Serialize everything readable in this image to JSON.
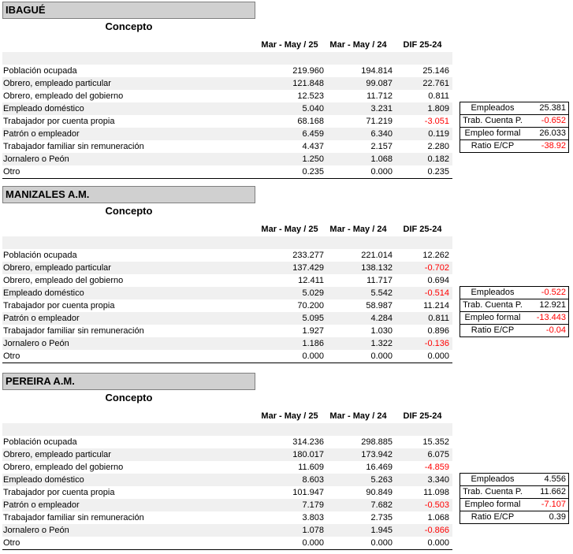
{
  "columns": [
    "Mar - May / 25",
    "Mar - May / 24",
    "DIF 25-24"
  ],
  "concepto_label": "Concepto",
  "sections": [
    {
      "title": "IBAGUÉ",
      "rows": [
        {
          "label": "Población ocupada",
          "v1": "219.960",
          "v2": "194.814",
          "v3": "25.146"
        },
        {
          "label": "Obrero, empleado particular",
          "v1": "121.848",
          "v2": "99.087",
          "v3": "22.761"
        },
        {
          "label": "Obrero, empleado del gobierno",
          "v1": "12.523",
          "v2": "11.712",
          "v3": "0.811"
        },
        {
          "label": "Empleado doméstico",
          "v1": "5.040",
          "v2": "3.231",
          "v3": "1.809"
        },
        {
          "label": "Trabajador por cuenta propia",
          "v1": "68.168",
          "v2": "71.219",
          "v3": "-3.051"
        },
        {
          "label": "Patrón o empleador",
          "v1": "6.459",
          "v2": "6.340",
          "v3": "0.119"
        },
        {
          "label": "Trabajador familiar sin remuneración",
          "v1": "4.437",
          "v2": "2.157",
          "v3": "2.280"
        },
        {
          "label": "Jornalero o Peón",
          "v1": "1.250",
          "v2": "1.068",
          "v3": "0.182"
        },
        {
          "label": "Otro",
          "v1": "0.235",
          "v2": "0.000",
          "v3": "0.235"
        }
      ],
      "summary": [
        {
          "k": "Empleados",
          "v": "25.381"
        },
        {
          "k": "Trab. Cuenta P.",
          "v": "-0.652"
        },
        {
          "k": "Empleo formal",
          "v": "26.033"
        },
        {
          "k": "Ratio E/CP",
          "v": "-38.92"
        }
      ]
    },
    {
      "title": "MANIZALES A.M.",
      "rows": [
        {
          "label": "Población ocupada",
          "v1": "233.277",
          "v2": "221.014",
          "v3": "12.262"
        },
        {
          "label": "Obrero, empleado particular",
          "v1": "137.429",
          "v2": "138.132",
          "v3": "-0.702"
        },
        {
          "label": "Obrero, empleado del gobierno",
          "v1": "12.411",
          "v2": "11.717",
          "v3": "0.694"
        },
        {
          "label": "Empleado doméstico",
          "v1": "5.029",
          "v2": "5.542",
          "v3": "-0.514"
        },
        {
          "label": "Trabajador por cuenta propia",
          "v1": "70.200",
          "v2": "58.987",
          "v3": "11.214"
        },
        {
          "label": "Patrón o empleador",
          "v1": "5.095",
          "v2": "4.284",
          "v3": "0.811"
        },
        {
          "label": "Trabajador familiar sin remuneración",
          "v1": "1.927",
          "v2": "1.030",
          "v3": "0.896"
        },
        {
          "label": "Jornalero o Peón",
          "v1": "1.186",
          "v2": "1.322",
          "v3": "-0.136"
        },
        {
          "label": "Otro",
          "v1": "0.000",
          "v2": "0.000",
          "v3": "0.000"
        }
      ],
      "summary": [
        {
          "k": "Empleados",
          "v": "-0.522"
        },
        {
          "k": "Trab. Cuenta P.",
          "v": "12.921"
        },
        {
          "k": "Empleo formal",
          "v": "-13.443"
        },
        {
          "k": "Ratio E/CP",
          "v": "-0.04"
        }
      ]
    },
    {
      "title": "PEREIRA A.M.",
      "rows": [
        {
          "label": "Población ocupada",
          "v1": "314.236",
          "v2": "298.885",
          "v3": "15.352"
        },
        {
          "label": "Obrero, empleado particular",
          "v1": "180.017",
          "v2": "173.942",
          "v3": "6.075"
        },
        {
          "label": "Obrero, empleado del gobierno",
          "v1": "11.609",
          "v2": "16.469",
          "v3": "-4.859"
        },
        {
          "label": "Empleado doméstico",
          "v1": "8.603",
          "v2": "5.263",
          "v3": "3.340"
        },
        {
          "label": "Trabajador por cuenta propia",
          "v1": "101.947",
          "v2": "90.849",
          "v3": "11.098"
        },
        {
          "label": "Patrón o empleador",
          "v1": "7.179",
          "v2": "7.682",
          "v3": "-0.503"
        },
        {
          "label": "Trabajador familiar sin remuneración",
          "v1": "3.803",
          "v2": "2.735",
          "v3": "1.068"
        },
        {
          "label": "Jornalero o Peón",
          "v1": "1.078",
          "v2": "1.945",
          "v3": "-0.866"
        },
        {
          "label": "Otro",
          "v1": "0.000",
          "v2": "0.000",
          "v3": "0.000"
        }
      ],
      "summary": [
        {
          "k": "Empleados",
          "v": "4.556"
        },
        {
          "k": "Trab. Cuenta P.",
          "v": "11.662"
        },
        {
          "k": "Empleo formal",
          "v": "-7.107"
        },
        {
          "k": "Ratio E/CP",
          "v": "0.39"
        }
      ]
    }
  ]
}
